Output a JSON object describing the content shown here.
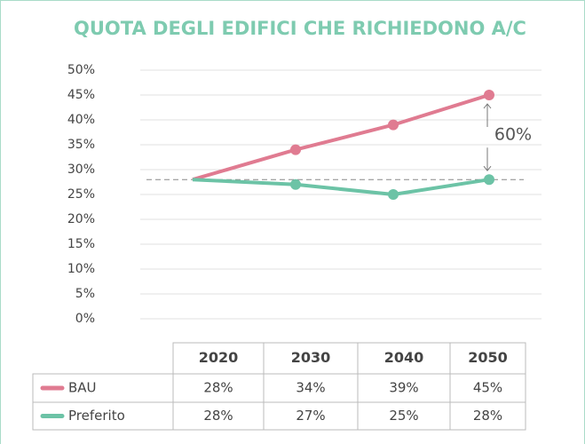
{
  "chart_data": {
    "type": "line",
    "title": "QUOTA DEGLI EDIFICI CHE RICHIEDONO A/C",
    "categories": [
      "2020",
      "2030",
      "2040",
      "2050"
    ],
    "series": [
      {
        "name": "BAU",
        "color": "#e07b91",
        "values": [
          28,
          34,
          39,
          45
        ],
        "value_labels": [
          "28%",
          "34%",
          "39%",
          "45%"
        ]
      },
      {
        "name": "Preferito",
        "color": "#6cc3a6",
        "values": [
          28,
          27,
          25,
          28
        ],
        "value_labels": [
          "28%",
          "27%",
          "25%",
          "28%"
        ]
      }
    ],
    "ylim": [
      0,
      50
    ],
    "yticks": [
      {
        "value": 0,
        "label": "0%"
      },
      {
        "value": 5,
        "label": "5%"
      },
      {
        "value": 10,
        "label": "10%"
      },
      {
        "value": 15,
        "label": "15%"
      },
      {
        "value": 20,
        "label": "20%"
      },
      {
        "value": 25,
        "label": "25%"
      },
      {
        "value": 30,
        "label": "30%"
      },
      {
        "value": 35,
        "label": "35%"
      },
      {
        "value": 40,
        "label": "40%"
      },
      {
        "value": 45,
        "label": "45%"
      },
      {
        "value": 50,
        "label": "50%"
      }
    ],
    "grid": true,
    "reference_value": 28,
    "annotation": "60%"
  }
}
